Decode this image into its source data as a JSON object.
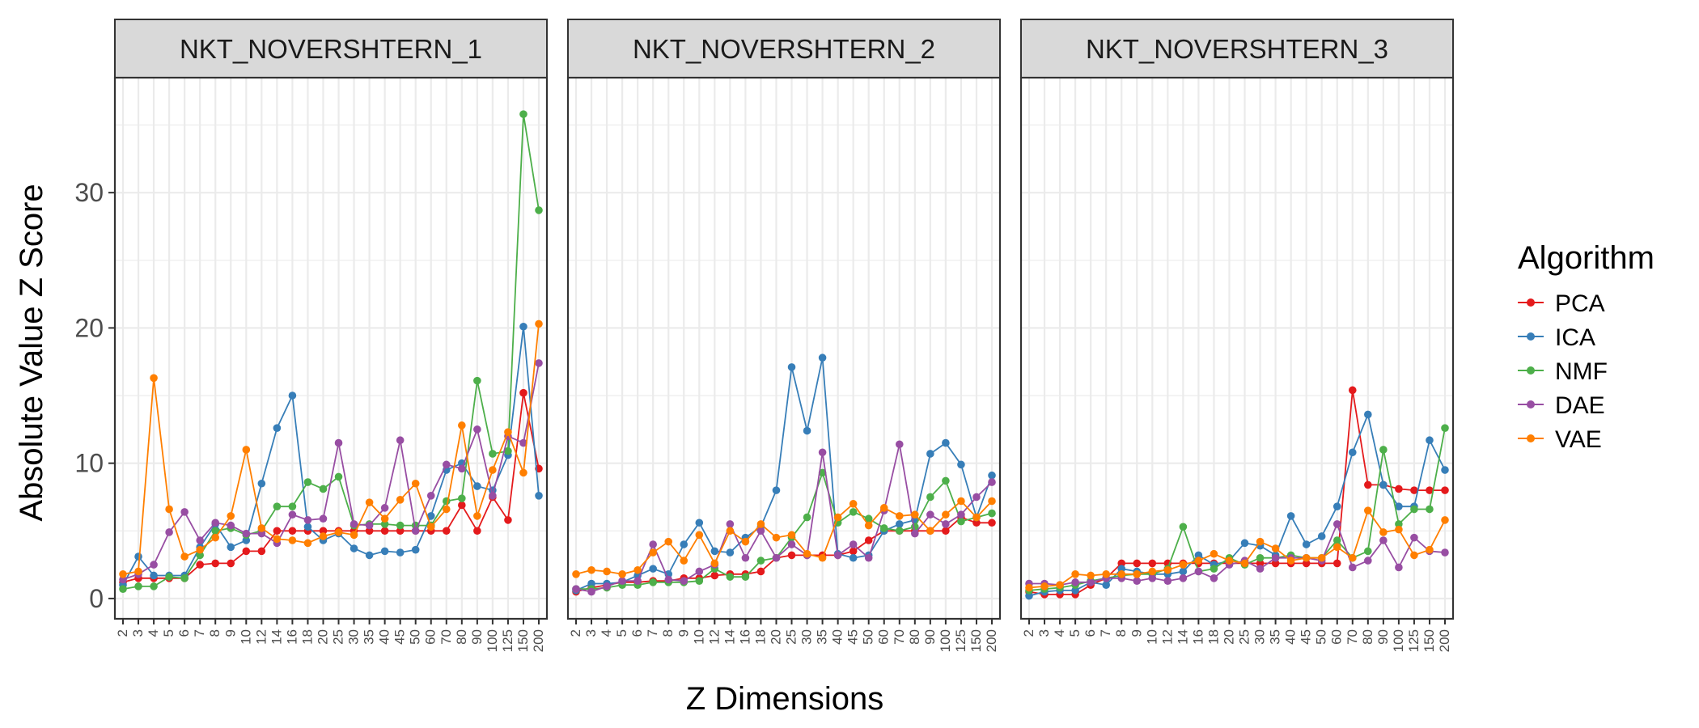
{
  "figure": {
    "ylabel": "Absolute Value Z Score",
    "xlabel": "Z Dimensions",
    "legend_title": "Algorithm"
  },
  "chart_data": {
    "type": "line",
    "x_categories": [
      "2",
      "3",
      "4",
      "5",
      "6",
      "7",
      "8",
      "9",
      "10",
      "12",
      "14",
      "16",
      "18",
      "20",
      "25",
      "30",
      "35",
      "40",
      "45",
      "50",
      "60",
      "70",
      "80",
      "90",
      "100",
      "125",
      "150",
      "200"
    ],
    "y_ticks": [
      0,
      10,
      20,
      30
    ],
    "ylim": [
      -1.5,
      38.5
    ],
    "grid": true,
    "legend_position": "right",
    "series_names": [
      "PCA",
      "ICA",
      "NMF",
      "DAE",
      "VAE"
    ],
    "series_colors": {
      "PCA": "#e41a1c",
      "ICA": "#377eb8",
      "NMF": "#4daf4a",
      "DAE": "#984ea3",
      "VAE": "#ff7f00"
    },
    "panels": [
      {
        "title": "NKT_NOVERSHTERN_1",
        "series": [
          {
            "name": "PCA",
            "values": [
              1.2,
              1.5,
              1.5,
              1.5,
              1.5,
              2.5,
              2.6,
              2.6,
              3.5,
              3.5,
              5.0,
              5.0,
              5.0,
              5.0,
              5.0,
              5.0,
              5.0,
              5.0,
              5.0,
              5.0,
              5.0,
              5.0,
              6.9,
              5.0,
              7.5,
              5.8,
              15.2,
              9.6
            ]
          },
          {
            "name": "ICA",
            "values": [
              1.0,
              3.1,
              1.7,
              1.7,
              1.7,
              3.8,
              5.5,
              3.8,
              4.3,
              8.5,
              12.6,
              15.0,
              5.3,
              4.3,
              4.8,
              3.7,
              3.2,
              3.5,
              3.4,
              3.6,
              6.1,
              9.5,
              10.0,
              8.3,
              8.0,
              10.6,
              20.1,
              7.6
            ]
          },
          {
            "name": "NMF",
            "values": [
              0.7,
              0.9,
              0.9,
              1.6,
              1.5,
              3.2,
              5.0,
              5.2,
              4.7,
              5.0,
              6.8,
              6.8,
              8.6,
              8.1,
              9.0,
              5.4,
              5.5,
              5.5,
              5.4,
              5.4,
              5.4,
              7.2,
              7.4,
              16.1,
              10.7,
              10.9,
              35.8,
              28.7
            ]
          },
          {
            "name": "DAE",
            "values": [
              1.4,
              1.8,
              2.5,
              4.9,
              6.4,
              4.3,
              5.6,
              5.4,
              4.8,
              4.8,
              4.1,
              6.2,
              5.8,
              5.9,
              11.5,
              5.5,
              5.4,
              6.7,
              11.7,
              5.0,
              7.6,
              9.9,
              9.6,
              12.5,
              7.6,
              12.0,
              11.5,
              17.4
            ]
          },
          {
            "name": "VAE",
            "values": [
              1.8,
              2.0,
              16.3,
              6.6,
              3.1,
              3.6,
              4.5,
              6.1,
              11.0,
              5.2,
              4.4,
              4.3,
              4.1,
              4.6,
              4.9,
              4.7,
              7.1,
              5.9,
              7.3,
              8.5,
              5.3,
              6.6,
              12.8,
              6.1,
              9.5,
              12.3,
              9.3,
              20.3
            ]
          }
        ]
      },
      {
        "title": "NKT_NOVERSHTERN_2",
        "series": [
          {
            "name": "PCA",
            "values": [
              0.5,
              0.8,
              1.0,
              1.2,
              1.2,
              1.3,
              1.3,
              1.5,
              1.5,
              1.7,
              1.8,
              1.8,
              2.0,
              3.0,
              3.2,
              3.2,
              3.2,
              3.2,
              3.5,
              4.3,
              5.0,
              5.0,
              5.0,
              5.0,
              5.0,
              6.0,
              5.6,
              5.6
            ]
          },
          {
            "name": "ICA",
            "values": [
              0.6,
              1.1,
              1.1,
              1.2,
              1.7,
              2.2,
              1.8,
              4.0,
              5.6,
              3.5,
              3.4,
              4.5,
              5.3,
              8.0,
              17.1,
              12.4,
              17.8,
              3.3,
              3.0,
              3.2,
              5.0,
              5.5,
              5.8,
              10.7,
              11.5,
              9.9,
              6.0,
              9.1
            ]
          },
          {
            "name": "NMF",
            "values": [
              0.7,
              0.7,
              0.8,
              1.0,
              1.0,
              1.2,
              1.2,
              1.2,
              1.3,
              2.2,
              1.6,
              1.6,
              2.8,
              3.0,
              4.5,
              6.0,
              9.3,
              5.6,
              6.4,
              5.9,
              5.2,
              5.0,
              5.3,
              7.5,
              8.7,
              5.7,
              6.0,
              6.3
            ]
          },
          {
            "name": "DAE",
            "values": [
              0.7,
              0.5,
              0.9,
              1.3,
              1.3,
              4.0,
              1.4,
              1.3,
              2.0,
              2.5,
              5.5,
              3.0,
              5.0,
              3.0,
              4.0,
              3.2,
              10.8,
              3.2,
              4.0,
              3.0,
              6.5,
              11.4,
              4.8,
              6.2,
              5.5,
              6.2,
              7.5,
              8.6
            ]
          },
          {
            "name": "VAE",
            "values": [
              1.8,
              2.1,
              2.0,
              1.8,
              2.1,
              3.4,
              4.2,
              2.8,
              4.7,
              2.6,
              5.0,
              4.2,
              5.5,
              4.5,
              4.7,
              3.3,
              3.0,
              6.0,
              7.0,
              5.4,
              6.7,
              6.1,
              6.2,
              5.0,
              6.2,
              7.2,
              6.0,
              7.2
            ]
          }
        ]
      },
      {
        "title": "NKT_NOVERSHTERN_3",
        "series": [
          {
            "name": "PCA",
            "values": [
              0.5,
              0.3,
              0.3,
              0.3,
              1.0,
              1.5,
              2.6,
              2.6,
              2.6,
              2.6,
              2.6,
              2.6,
              2.6,
              2.6,
              2.6,
              2.6,
              2.6,
              2.6,
              2.6,
              2.6,
              2.6,
              15.4,
              8.4,
              8.4,
              8.1,
              8.0,
              8.0,
              8.0
            ]
          },
          {
            "name": "ICA",
            "values": [
              0.2,
              0.5,
              0.6,
              0.6,
              1.2,
              1.0,
              2.2,
              2.0,
              1.8,
              1.8,
              2.0,
              3.2,
              2.5,
              2.8,
              4.1,
              3.9,
              3.2,
              6.1,
              4.0,
              4.6,
              6.8,
              10.8,
              13.6,
              8.4,
              6.8,
              6.8,
              11.7,
              9.5
            ]
          },
          {
            "name": "NMF",
            "values": [
              0.6,
              0.7,
              0.8,
              1.0,
              1.3,
              1.5,
              1.7,
              1.8,
              1.8,
              2.2,
              5.3,
              2.0,
              2.2,
              3.0,
              2.5,
              3.0,
              3.0,
              3.2,
              3.0,
              3.0,
              4.3,
              3.0,
              3.5,
              11.0,
              5.5,
              6.6,
              6.6,
              12.6
            ]
          },
          {
            "name": "DAE",
            "values": [
              1.1,
              1.1,
              1.0,
              1.2,
              1.2,
              1.5,
              1.5,
              1.3,
              1.5,
              1.3,
              1.5,
              2.0,
              1.5,
              2.5,
              2.8,
              2.2,
              3.0,
              3.0,
              3.0,
              2.8,
              5.5,
              2.3,
              2.8,
              4.3,
              2.3,
              4.5,
              3.5,
              3.4
            ]
          },
          {
            "name": "VAE",
            "values": [
              0.8,
              0.9,
              1.0,
              1.8,
              1.7,
              1.8,
              1.8,
              1.8,
              2.0,
              2.1,
              2.5,
              2.8,
              3.3,
              2.8,
              2.6,
              4.2,
              3.7,
              2.8,
              3.0,
              3.0,
              3.8,
              3.0,
              6.5,
              4.9,
              5.1,
              3.2,
              3.6,
              5.8
            ]
          }
        ]
      }
    ]
  }
}
